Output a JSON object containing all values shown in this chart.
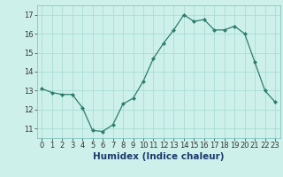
{
  "x": [
    0,
    1,
    2,
    3,
    4,
    5,
    6,
    7,
    8,
    9,
    10,
    11,
    12,
    13,
    14,
    15,
    16,
    17,
    18,
    19,
    20,
    21,
    22,
    23
  ],
  "y": [
    13.1,
    12.9,
    12.8,
    12.8,
    12.1,
    10.9,
    10.85,
    11.2,
    12.3,
    12.6,
    13.5,
    14.7,
    15.5,
    16.2,
    17.0,
    16.65,
    16.75,
    16.2,
    16.2,
    16.4,
    16.0,
    14.5,
    13.0,
    12.4
  ],
  "line_color": "#2e7d6e",
  "marker": "D",
  "marker_size": 2.0,
  "bg_color": "#cdf0ea",
  "grid_color": "#aaddd6",
  "xlabel": "Humidex (Indice chaleur)",
  "xlabel_fontsize": 7.5,
  "ytick_labels": [
    "11",
    "12",
    "13",
    "14",
    "15",
    "16",
    "17"
  ],
  "ytick_vals": [
    11,
    12,
    13,
    14,
    15,
    16,
    17
  ],
  "xtick_vals": [
    0,
    1,
    2,
    3,
    4,
    5,
    6,
    7,
    8,
    9,
    10,
    11,
    12,
    13,
    14,
    15,
    16,
    17,
    18,
    19,
    20,
    21,
    22,
    23
  ],
  "ylim": [
    10.5,
    17.5
  ],
  "xlim": [
    -0.5,
    23.5
  ],
  "tick_fontsize": 6.0,
  "linewidth": 0.9
}
